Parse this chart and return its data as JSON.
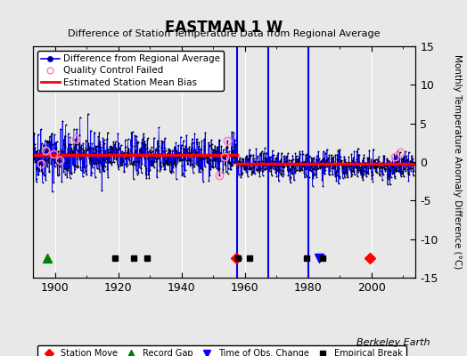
{
  "title": "EASTMAN 1 W",
  "subtitle": "Difference of Station Temperature Data from Regional Average",
  "ylabel_right": "Monthly Temperature Anomaly Difference (°C)",
  "xlim": [
    1893,
    2014
  ],
  "ylim": [
    -15,
    15
  ],
  "yticks": [
    -15,
    -10,
    -5,
    0,
    5,
    10,
    15
  ],
  "xticks": [
    1900,
    1920,
    1940,
    1960,
    1980,
    2000
  ],
  "bg_color": "#e8e8e8",
  "grid_color": "white",
  "data_line_color": "#0000ff",
  "dot_color": "black",
  "bias_color": "#ff0000",
  "qc_color": "#ff80c0",
  "vline_color": "#0000ff",
  "watermark": "Berkeley Earth",
  "vertical_lines": [
    1957.5,
    1967.5,
    1980.0
  ],
  "bias_segments": [
    {
      "x": [
        1893,
        1957.5
      ],
      "y": [
        0.9,
        0.9
      ]
    },
    {
      "x": [
        1957.5,
        2013.5
      ],
      "y": [
        -0.25,
        -0.25
      ]
    }
  ],
  "station_moves": [
    1957.2,
    1999.5
  ],
  "record_gaps": [
    1897.5
  ],
  "time_obs_changes": [
    1983.5
  ],
  "empirical_breaks": [
    1919.0,
    1925.0,
    1929.0,
    1957.8,
    1961.5,
    1979.5,
    1984.5
  ],
  "marker_y": -12.5,
  "seed": 42,
  "qc_failed_times": [
    1895.5,
    1897.0,
    1899.5,
    1901.5,
    1906.5,
    1952.0,
    1953.5,
    1954.5,
    2007.5,
    2009.0
  ]
}
